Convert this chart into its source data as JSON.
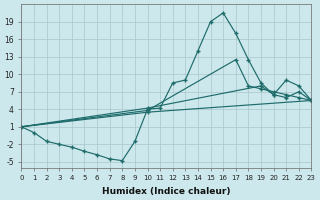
{
  "xlabel": "Humidex (Indice chaleur)",
  "bg_color": "#cde8ec",
  "grid_color": "#a8c8cc",
  "line_color": "#1e6b6b",
  "xlim": [
    0,
    23
  ],
  "ylim": [
    -6,
    22
  ],
  "xticks": [
    0,
    1,
    2,
    3,
    4,
    5,
    6,
    7,
    8,
    9,
    10,
    11,
    12,
    13,
    14,
    15,
    16,
    17,
    18,
    19,
    20,
    21,
    22,
    23
  ],
  "yticks": [
    -5,
    -2,
    1,
    4,
    7,
    10,
    13,
    16,
    19
  ],
  "series": [
    {
      "x": [
        0,
        1,
        2,
        3,
        4,
        5,
        6,
        7,
        8,
        9,
        10,
        11,
        12,
        13,
        14,
        15,
        16,
        17,
        18,
        19,
        20,
        21,
        22,
        23
      ],
      "y": [
        1,
        0,
        -1.5,
        -2,
        -2.5,
        -3.2,
        -3.8,
        -4.5,
        -4.8,
        -1.5,
        4,
        4.2,
        8.5,
        9,
        14,
        19,
        20.5,
        17,
        12.5,
        8.5,
        6.5,
        6,
        7,
        5.5
      ]
    },
    {
      "x": [
        0,
        10,
        19,
        20,
        21,
        22,
        23
      ],
      "y": [
        1,
        4.2,
        8,
        6.5,
        9,
        8,
        5.5
      ]
    },
    {
      "x": [
        0,
        10,
        17,
        18,
        19,
        20,
        21,
        22,
        23
      ],
      "y": [
        1,
        3.8,
        12.5,
        8,
        7.5,
        7,
        6.5,
        6,
        5.5
      ]
    },
    {
      "x": [
        0,
        10,
        23
      ],
      "y": [
        1,
        3.5,
        5.5
      ]
    }
  ]
}
